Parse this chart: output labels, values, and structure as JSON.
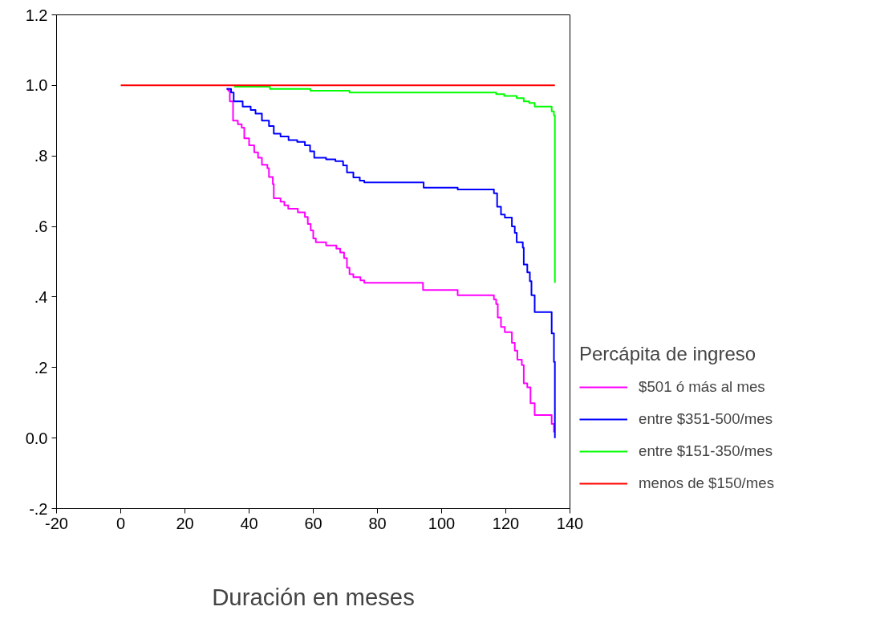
{
  "chart_data": {
    "type": "step",
    "xlabel": "Duración en meses",
    "legend_title": "Percápita de ingreso",
    "legend": "right",
    "grid": false,
    "xlim": [
      -20,
      140
    ],
    "ylim": [
      -0.2,
      1.2
    ],
    "xticks": [
      {
        "value": -20,
        "label": "-20"
      },
      0,
      20,
      40,
      60,
      80,
      100,
      120,
      140
    ],
    "yticks": [
      {
        "value": -0.2,
        "label": "-.2"
      },
      {
        "value": 0,
        "label": "0.0"
      },
      {
        "value": 0.2,
        "label": ".2"
      },
      {
        "value": 0.4,
        "label": ".4"
      },
      {
        "value": 0.6,
        "label": ".6"
      },
      {
        "value": 0.8,
        "label": ".8"
      },
      {
        "value": 1.0,
        "label": "1.0"
      },
      {
        "value": 1.2,
        "label": "1.2"
      }
    ],
    "series": [
      {
        "name": "$501 ó más al mes",
        "color": "#ff00ff",
        "x": [
          33,
          33.5,
          34,
          35,
          36.5,
          37.7,
          38.5,
          40,
          41.6,
          42.8,
          44,
          45.7,
          46.2,
          47.4,
          47.7,
          49.8,
          51,
          52.2,
          55.2,
          57.4,
          58.3,
          59.2,
          60,
          60.8,
          64,
          67.2,
          68.4,
          69.6,
          70.5,
          71.3,
          72.5,
          74.7,
          75.9,
          94.2,
          105,
          116.3,
          117,
          117.5,
          118.5,
          119.7,
          121.9,
          122.8,
          123.6,
          125,
          125.6,
          126.7,
          127.7,
          129,
          134.3,
          135,
          135.3
        ],
        "values": [
          0.99,
          0.985,
          0.955,
          0.9,
          0.89,
          0.88,
          0.85,
          0.83,
          0.81,
          0.795,
          0.775,
          0.765,
          0.74,
          0.72,
          0.68,
          0.67,
          0.66,
          0.65,
          0.64,
          0.627,
          0.607,
          0.589,
          0.566,
          0.555,
          0.546,
          0.537,
          0.526,
          0.51,
          0.483,
          0.465,
          0.456,
          0.447,
          0.44,
          0.42,
          0.405,
          0.393,
          0.38,
          0.342,
          0.315,
          0.3,
          0.27,
          0.248,
          0.222,
          0.207,
          0.155,
          0.144,
          0.099,
          0.065,
          0.04,
          0.018,
          0.018
        ]
      },
      {
        "name": "entre $351-500/mes",
        "color": "#0000ff",
        "x": [
          33,
          34.4,
          35.2,
          38,
          40.5,
          42,
          44,
          46.2,
          47.7,
          49.8,
          52.3,
          55,
          57.4,
          59,
          60.3,
          64,
          66.9,
          69.3,
          70.5,
          72.5,
          74.5,
          75.9,
          94.4,
          105,
          116.3,
          117.3,
          118.5,
          119.7,
          121.9,
          122.8,
          123.4,
          125.3,
          125.6,
          126.7,
          127.5,
          128,
          129,
          134.3,
          135,
          135.3
        ],
        "values": [
          0.99,
          0.98,
          0.955,
          0.94,
          0.93,
          0.92,
          0.9,
          0.885,
          0.863,
          0.855,
          0.845,
          0.84,
          0.83,
          0.813,
          0.795,
          0.79,
          0.785,
          0.773,
          0.753,
          0.739,
          0.73,
          0.725,
          0.71,
          0.705,
          0.694,
          0.656,
          0.634,
          0.625,
          0.6,
          0.582,
          0.555,
          0.54,
          0.492,
          0.47,
          0.445,
          0.405,
          0.357,
          0.297,
          0.216,
          0.0
        ]
      },
      {
        "name": "entre $151-350/mes",
        "color": "#00ff00",
        "x": [
          35.3,
          46.5,
          59.1,
          71.3,
          117,
          119.5,
          123.4,
          125.6,
          127.3,
          129,
          134.3,
          135,
          135.3
        ],
        "values": [
          0.996,
          0.99,
          0.985,
          0.98,
          0.975,
          0.97,
          0.964,
          0.955,
          0.95,
          0.94,
          0.926,
          0.915,
          0.44
        ]
      },
      {
        "name": "menos de $150/mes",
        "color": "#ff0000",
        "x": [
          0,
          135.3
        ],
        "values": [
          1.0,
          1.0
        ]
      }
    ]
  }
}
